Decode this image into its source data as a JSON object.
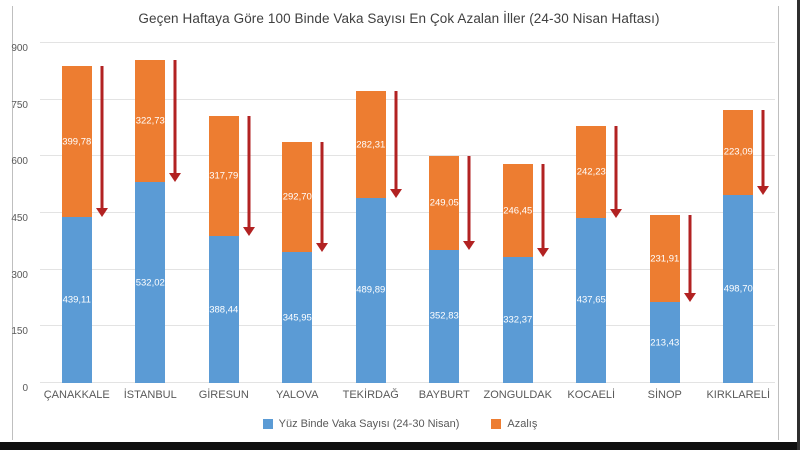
{
  "colors": {
    "case_series": "#5b9bd5",
    "decrease_series": "#ed7d31",
    "arrow": "#b22222",
    "grid": "#e3e3e3",
    "axis_text": "#595959",
    "title_text": "#404040",
    "chart_border": "#bfbfbf"
  },
  "chart_data": {
    "type": "bar",
    "stacked": true,
    "title": "Geçen Haftaya Göre 100 Binde Vaka Sayısı En Çok Azalan İller (24-30 Nisan Haftası)",
    "categories": [
      "ÇANAKKALE",
      "İSTANBUL",
      "GİRESUN",
      "YALOVA",
      "TEKİRDAĞ",
      "BAYBURT",
      "ZONGULDAK",
      "KOCAELİ",
      "SİNOP",
      "KIRKLARELİ"
    ],
    "series": [
      {
        "name": "Yüz Binde Vaka Sayısı (24-30 Nisan)",
        "color": "#5b9bd5",
        "values": [
          439.11,
          532.02,
          388.44,
          345.95,
          489.89,
          352.83,
          332.37,
          437.65,
          213.43,
          498.7
        ],
        "labels": [
          "439,11",
          "532,02",
          "388,44",
          "345,95",
          "489,89",
          "352,83",
          "332,37",
          "437,65",
          "213,43",
          "498,70"
        ]
      },
      {
        "name": "Azalış",
        "color": "#ed7d31",
        "values": [
          399.78,
          322.73,
          317.79,
          292.7,
          282.31,
          249.05,
          246.45,
          242.23,
          231.91,
          223.09
        ],
        "labels": [
          "399,78",
          "322,73",
          "317,79",
          "292,70",
          "282,31",
          "249,05",
          "246,45",
          "242,23",
          "231,91",
          "223,09"
        ]
      }
    ],
    "y_ticks": [
      0,
      150,
      300,
      450,
      600,
      750,
      900
    ],
    "y_tick_labels": [
      "0",
      "150",
      "300",
      "450",
      "600",
      "750",
      "900"
    ],
    "ylim": [
      0,
      900
    ],
    "xlabel": "",
    "ylabel": "",
    "grid": true,
    "legend_position": "bottom",
    "annotations": "dark-red downward arrow beside each bar spanning the decrease (Azalış) segment"
  }
}
